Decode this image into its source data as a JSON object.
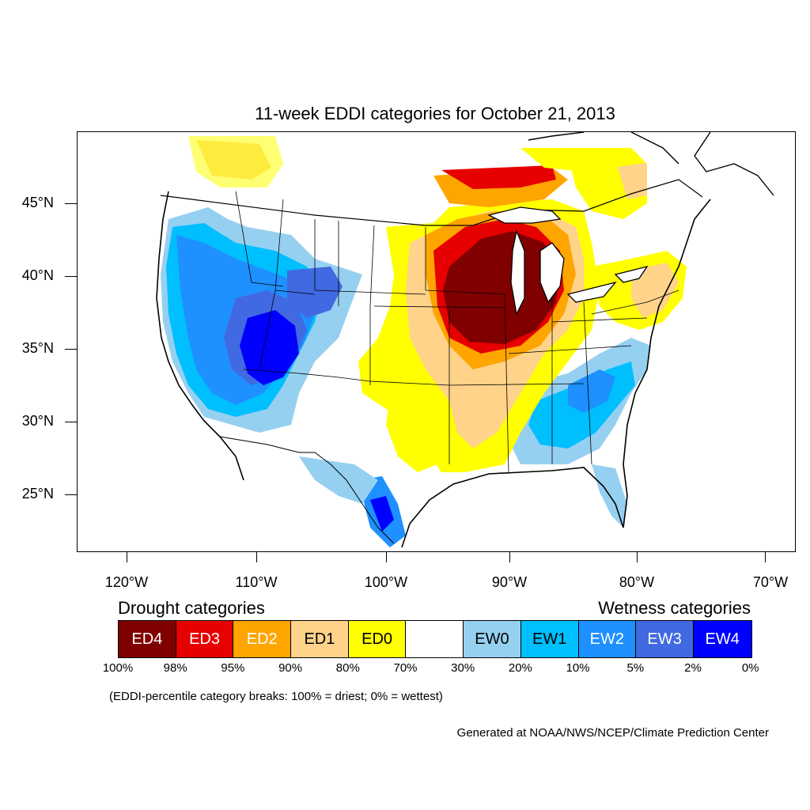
{
  "title": "11-week EDDI categories for October 21, 2013",
  "latitude_labels": [
    "45°N",
    "40°N",
    "35°N",
    "30°N",
    "25°N"
  ],
  "longitude_labels": [
    "120°W",
    "110°W",
    "100°W",
    "90°W",
    "80°W",
    "70°W"
  ],
  "legend": {
    "drought_heading": "Drought categories",
    "wetness_heading": "Wetness categories",
    "categories": [
      {
        "label": "ED4",
        "color": "#800000",
        "text_color": "#ffffff"
      },
      {
        "label": "ED3",
        "color": "#e60000",
        "text_color": "#ffffff"
      },
      {
        "label": "ED2",
        "color": "#ffa500",
        "text_color": "#ffffff"
      },
      {
        "label": "ED1",
        "color": "#ffd38a",
        "text_color": "#000000"
      },
      {
        "label": "ED0",
        "color": "#ffff00",
        "text_color": "#000000"
      },
      {
        "label": "",
        "color": "#ffffff",
        "text_color": "#000000"
      },
      {
        "label": "EW0",
        "color": "#96d0f0",
        "text_color": "#000000"
      },
      {
        "label": "EW1",
        "color": "#00bfff",
        "text_color": "#000000"
      },
      {
        "label": "EW2",
        "color": "#1e90ff",
        "text_color": "#ffffff"
      },
      {
        "label": "EW3",
        "color": "#4169e1",
        "text_color": "#ffffff"
      },
      {
        "label": "EW4",
        "color": "#0000ff",
        "text_color": "#ffffff"
      }
    ],
    "percent_breaks": [
      "100%",
      "98%",
      "95%",
      "90%",
      "80%",
      "70%",
      "30%",
      "20%",
      "10%",
      "5%",
      "2%",
      "0%"
    ]
  },
  "note": "(EDDI-percentile category breaks: 100% = driest; 0% = wettest)",
  "credit": "Generated at NOAA/NWS/NCEP/Climate Prediction Center",
  "colors": {
    "ED4": "#800000",
    "ED3": "#e60000",
    "ED2": "#ffa500",
    "ED1": "#ffd38a",
    "ED0": "#ffff00",
    "EW0": "#96d0f0",
    "EW1": "#00bfff",
    "EW2": "#1e90ff",
    "EW3": "#4169e1",
    "EW4": "#0000ff"
  }
}
